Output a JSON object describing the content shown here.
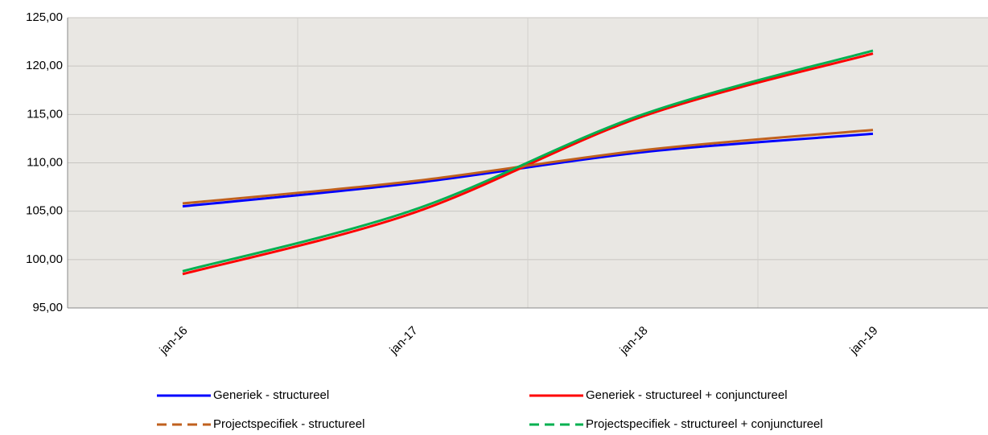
{
  "chart_data": {
    "type": "line",
    "categories": [
      "jan-16",
      "jan-17",
      "jan-18",
      "jan-19"
    ],
    "series": [
      {
        "name": "Generiek - structureel",
        "color": "#0000ff",
        "dashed": false,
        "values": [
          105.5,
          107.9,
          111.1,
          113.0
        ]
      },
      {
        "name": "Generiek - structureel + conjunctureel",
        "color": "#ff0000",
        "dashed": false,
        "values": [
          98.5,
          104.8,
          114.8,
          121.3
        ]
      },
      {
        "name": "Projectspecifiek - structureel",
        "color": "#c0601e",
        "dashed": true,
        "values": [
          105.8,
          108.1,
          111.3,
          113.4
        ]
      },
      {
        "name": "Projectspecifiek - structureel + conjunctureel",
        "color": "#00b050",
        "dashed": true,
        "values": [
          98.8,
          105.1,
          115.0,
          121.6
        ]
      }
    ],
    "ylim": [
      95,
      125
    ],
    "yticks": [
      {
        "value": 95,
        "label": "95,00"
      },
      {
        "value": 100,
        "label": "100,00"
      },
      {
        "value": 105,
        "label": "105,00"
      },
      {
        "value": 110,
        "label": "110,00"
      },
      {
        "value": 115,
        "label": "115,00"
      },
      {
        "value": 120,
        "label": "120,00"
      },
      {
        "value": 125,
        "label": "125,00"
      }
    ],
    "grid": true,
    "smooth": true,
    "legend": "bottom"
  }
}
